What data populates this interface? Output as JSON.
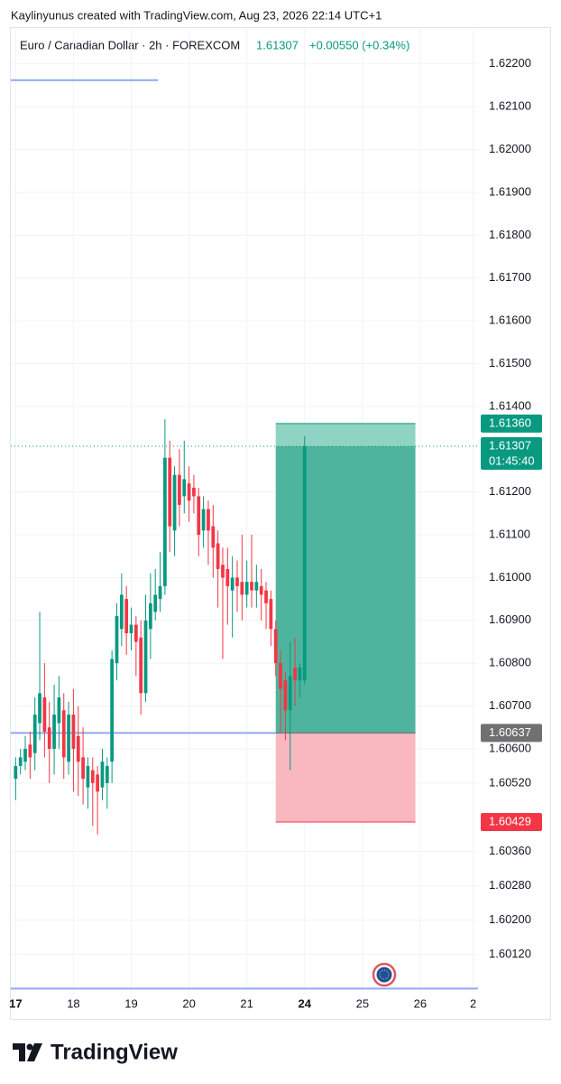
{
  "header": {
    "attribution": "Kaylinyunus created with TradingView.com, Aug 23, 2026 22:14 UTC+1",
    "symbol": "Euro / Canadian Dollar · 2h · FOREXCOM",
    "last": "1.61307",
    "change": "+0.00550 (+0.34%)"
  },
  "chart_data": {
    "type": "candlestick",
    "up_color": "#089981",
    "down_color": "#f23645",
    "grid": true,
    "x": [
      0,
      1,
      2,
      3,
      4,
      5,
      6,
      7,
      8,
      9,
      10,
      11,
      12,
      13,
      14,
      15,
      16,
      17,
      18,
      19,
      20,
      21,
      22,
      23,
      24,
      25,
      26,
      27,
      28,
      29,
      30,
      31,
      32,
      33,
      34,
      35,
      36,
      37,
      38,
      39,
      40,
      41,
      42,
      43,
      44,
      45,
      46,
      47,
      48,
      49,
      50,
      51,
      52,
      53,
      54,
      55,
      56,
      57,
      58,
      59,
      60
    ],
    "open": [
      1.6053,
      1.6056,
      1.6057,
      1.6061,
      1.6059,
      1.6066,
      1.6072,
      1.6065,
      1.606,
      1.6066,
      1.6069,
      1.6057,
      1.6068,
      1.6063,
      1.6058,
      1.6051,
      1.6055,
      1.6054,
      1.6051,
      1.6052,
      1.6057,
      1.608,
      1.6088,
      1.6095,
      1.6087,
      1.6089,
      1.6086,
      1.6073,
      1.6088,
      1.6092,
      1.6095,
      1.6098,
      1.6128,
      1.6111,
      1.6124,
      1.6119,
      1.6122,
      1.6121,
      1.6119,
      1.6111,
      1.6116,
      1.6112,
      1.6108,
      1.6103,
      1.6102,
      1.6097,
      1.61,
      1.6099,
      1.6096,
      1.6099,
      1.6097,
      1.6098,
      1.6097,
      1.6095,
      1.6088,
      1.608,
      1.6076,
      1.6069,
      1.6079,
      1.6076,
      1.6076
    ],
    "high": [
      1.6058,
      1.606,
      1.6063,
      1.6064,
      1.6072,
      1.6092,
      1.608,
      1.6071,
      1.6075,
      1.6077,
      1.6073,
      1.6071,
      1.6074,
      1.607,
      1.6065,
      1.6058,
      1.6058,
      1.6056,
      1.606,
      1.6058,
      1.6083,
      1.6094,
      1.6101,
      1.6098,
      1.6093,
      1.6091,
      1.609,
      1.6096,
      1.6101,
      1.6102,
      1.6106,
      1.6137,
      1.6132,
      1.6126,
      1.613,
      1.6132,
      1.6126,
      1.6124,
      1.6121,
      1.6119,
      1.6118,
      1.6117,
      1.6111,
      1.6107,
      1.6107,
      1.6105,
      1.6104,
      1.611,
      1.6104,
      1.611,
      1.6103,
      1.6102,
      1.6099,
      1.6097,
      1.609,
      1.6083,
      1.6078,
      1.6085,
      1.6086,
      1.608,
      1.6133
    ],
    "low": [
      1.6048,
      1.6054,
      1.6055,
      1.6053,
      1.6055,
      1.6062,
      1.6058,
      1.6052,
      1.6054,
      1.606,
      1.6053,
      1.6054,
      1.605,
      1.6049,
      1.6047,
      1.6046,
      1.6042,
      1.604,
      1.6048,
      1.6046,
      1.6052,
      1.6076,
      1.6084,
      1.6082,
      1.6083,
      1.6077,
      1.6068,
      1.6071,
      1.6081,
      1.609,
      1.6092,
      1.6096,
      1.6106,
      1.6105,
      1.6112,
      1.6115,
      1.6113,
      1.6115,
      1.6105,
      1.6107,
      1.6103,
      1.61,
      1.6093,
      1.6081,
      1.6089,
      1.6086,
      1.6092,
      1.609,
      1.6093,
      1.6093,
      1.6093,
      1.609,
      1.6088,
      1.6084,
      1.6077,
      1.6064,
      1.6062,
      1.6055,
      1.607,
      1.6072,
      1.6075
    ],
    "close": [
      1.6056,
      1.6058,
      1.606,
      1.6058,
      1.6068,
      1.6073,
      1.6064,
      1.606,
      1.6068,
      1.6072,
      1.6058,
      1.6068,
      1.606,
      1.6057,
      1.6053,
      1.6056,
      1.6052,
      1.605,
      1.6057,
      1.6056,
      1.6081,
      1.6091,
      1.6096,
      1.6087,
      1.6089,
      1.6085,
      1.6073,
      1.609,
      1.6094,
      1.6096,
      1.6098,
      1.6128,
      1.6112,
      1.6124,
      1.6117,
      1.6123,
      1.6118,
      1.6119,
      1.611,
      1.6116,
      1.6111,
      1.6107,
      1.6102,
      1.61,
      1.6098,
      1.61,
      1.6098,
      1.6096,
      1.6099,
      1.6097,
      1.6099,
      1.6096,
      1.6094,
      1.6088,
      1.608,
      1.6074,
      1.6069,
      1.6077,
      1.6076,
      1.6079,
      1.61307
    ],
    "xlim": [
      -1,
      96
    ],
    "xticks": [
      {
        "value": 0,
        "label": "17"
      },
      {
        "value": 12,
        "label": "18"
      },
      {
        "value": 24,
        "label": "19"
      },
      {
        "value": 36,
        "label": "20"
      },
      {
        "value": 48,
        "label": "21"
      },
      {
        "value": 60,
        "label": "24"
      },
      {
        "value": 72,
        "label": "25"
      },
      {
        "value": 84,
        "label": "26"
      },
      {
        "value": 95,
        "label": "2"
      }
    ],
    "ylim": [
      1.60028,
      1.62265
    ],
    "yticks": [
      {
        "value": 1.622,
        "label": "1.62200"
      },
      {
        "value": 1.621,
        "label": "1.62100"
      },
      {
        "value": 1.62,
        "label": "1.62000"
      },
      {
        "value": 1.619,
        "label": "1.61900"
      },
      {
        "value": 1.618,
        "label": "1.61800"
      },
      {
        "value": 1.617,
        "label": "1.61700"
      },
      {
        "value": 1.616,
        "label": "1.61600"
      },
      {
        "value": 1.615,
        "label": "1.61500"
      },
      {
        "value": 1.614,
        "label": "1.61400"
      },
      {
        "value": 1.612,
        "label": "1.61200"
      },
      {
        "value": 1.611,
        "label": "1.61100"
      },
      {
        "value": 1.61,
        "label": "1.61000"
      },
      {
        "value": 1.609,
        "label": "1.60900"
      },
      {
        "value": 1.608,
        "label": "1.60800"
      },
      {
        "value": 1.607,
        "label": "1.60700"
      },
      {
        "value": 1.606,
        "label": "1.60600"
      },
      {
        "value": 1.6052,
        "label": "1.60520"
      },
      {
        "value": 1.6036,
        "label": "1.60360"
      },
      {
        "value": 1.6028,
        "label": "1.60280"
      },
      {
        "value": 1.602,
        "label": "1.60200"
      },
      {
        "value": 1.6012,
        "label": "1.60120"
      }
    ],
    "position": {
      "start": 54,
      "end": 83,
      "target": 1.6136,
      "entry": 1.60637,
      "stop": 1.60429
    },
    "price_tags": [
      {
        "value": 1.6136,
        "label": "1.61360",
        "color": "#089981"
      },
      {
        "value": 1.61307,
        "label": "1.61307",
        "color": "#089981"
      },
      {
        "value": 1.60637,
        "label": "1.60637",
        "color": "#707070"
      },
      {
        "value": 1.60429,
        "label": "1.60429",
        "color": "#f23645"
      }
    ],
    "countdown": "01:45:40",
    "horizontal_lines": [
      1.62162,
      1.60637,
      1.6004
    ]
  },
  "footer": {
    "brand": "TradingView"
  }
}
